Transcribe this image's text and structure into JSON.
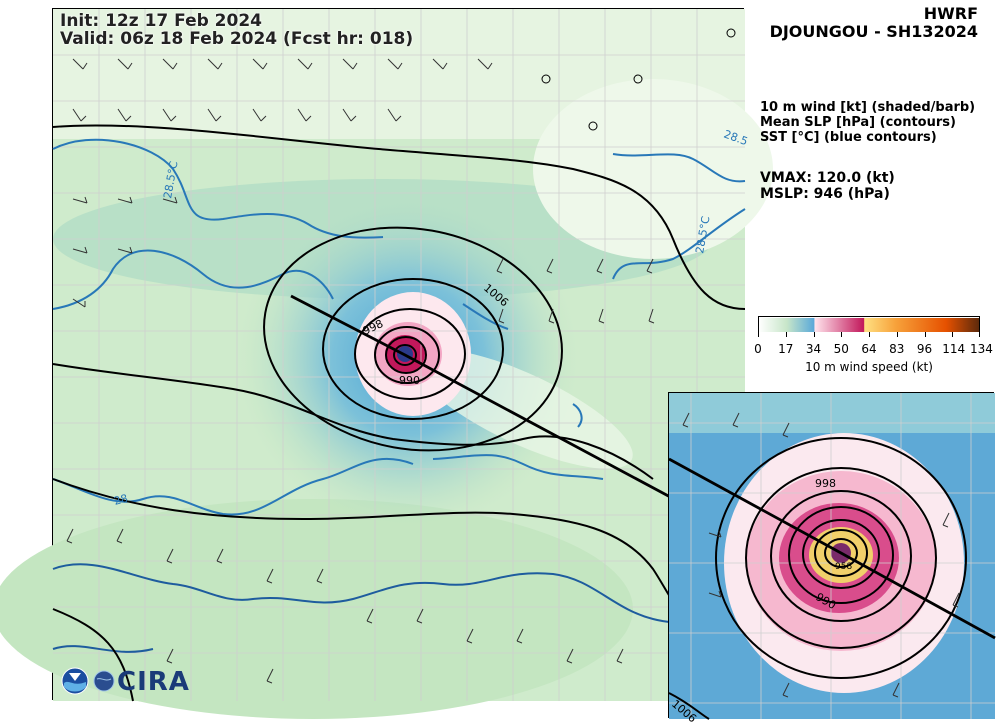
{
  "header": {
    "init": "Init:   12z 17 Feb 2024",
    "valid": "Valid: 06z 18 Feb 2024 (Fcst hr: 018)"
  },
  "title": {
    "model": "HWRF",
    "storm": "DJOUNGOU - SH132024"
  },
  "legend": {
    "line1": "10 m wind [kt] (shaded/barb)",
    "line2": "Mean SLP [hPa] (contours)",
    "line3": "SST [°C] (blue contours)"
  },
  "stats": {
    "vmax": "VMAX: 120.0 (kt)",
    "mslp": "MSLP:  946 (hPa)"
  },
  "colorbar": {
    "label": "10 m wind speed (kt)",
    "ticks": [
      "0",
      "17",
      "34",
      "50",
      "64",
      "83",
      "96",
      "114",
      "134"
    ],
    "colors": [
      "#ffffff",
      "#c8e6c9",
      "#5aa9d9",
      "#ffe4ec",
      "#c2185b",
      "#ffe082",
      "#f7a23b",
      "#e65100",
      "#5d2a0c"
    ]
  },
  "contour_labels": {
    "slp_1006": "1006",
    "slp_998": "998",
    "slp_990": "990",
    "slp_inset_998": "998",
    "slp_inset_990": "990",
    "slp_inset_1006": "1006",
    "slp_inset_958": "958",
    "sst_2857_a": "28.5°C",
    "sst_2857_b": "28.5°C",
    "sst_285_c": "28.5",
    "sst_28": "28"
  },
  "logo": {
    "text": "CIRA"
  }
}
